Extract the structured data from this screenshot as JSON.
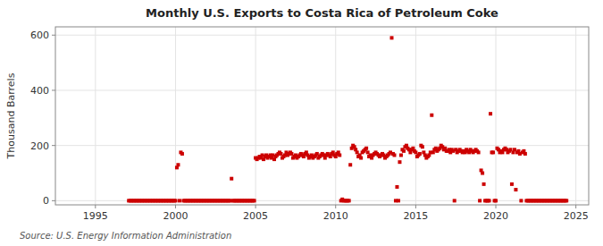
{
  "chart_data": {
    "type": "scatter",
    "title": "Monthly U.S. Exports to Costa Rica of Petroleum Coke",
    "ylabel": "Thousand Barrels",
    "annotation": "Source: U.S. Energy Information Administration",
    "color": "#cc0000",
    "marker": "square",
    "grid": true,
    "xlim": [
      1992.5,
      2025.8
    ],
    "xticks": [
      1995,
      2000,
      2005,
      2010,
      2015,
      2020,
      2025
    ],
    "ylim": [
      -15,
      630
    ],
    "yticks": [
      0,
      200,
      400,
      600
    ],
    "x": [
      1997.083,
      1997.167,
      1997.25,
      1997.333,
      1997.417,
      1997.5,
      1997.583,
      1997.667,
      1997.75,
      1997.833,
      1997.917,
      1998.0,
      1998.083,
      1998.167,
      1998.25,
      1998.333,
      1998.417,
      1998.5,
      1998.583,
      1998.667,
      1998.75,
      1998.833,
      1998.917,
      1999.0,
      1999.083,
      1999.167,
      1999.25,
      1999.333,
      1999.417,
      1999.5,
      1999.583,
      1999.667,
      1999.75,
      1999.833,
      1999.917,
      2000.0,
      2000.083,
      2000.167,
      2000.25,
      2000.333,
      2000.417,
      2000.5,
      2000.583,
      2000.667,
      2000.75,
      2000.833,
      2000.917,
      2001.0,
      2001.083,
      2001.167,
      2001.25,
      2001.333,
      2001.417,
      2001.5,
      2001.583,
      2001.667,
      2001.75,
      2001.833,
      2001.917,
      2002.0,
      2002.083,
      2002.167,
      2002.25,
      2002.333,
      2002.417,
      2002.5,
      2002.583,
      2002.667,
      2002.75,
      2002.833,
      2002.917,
      2003.0,
      2003.083,
      2003.167,
      2003.25,
      2003.333,
      2003.417,
      2003.5,
      2003.583,
      2003.667,
      2003.75,
      2003.833,
      2003.917,
      2004.0,
      2004.083,
      2004.167,
      2004.25,
      2004.333,
      2004.417,
      2004.5,
      2004.583,
      2004.667,
      2004.75,
      2004.833,
      2004.917,
      2005.0,
      2005.083,
      2005.167,
      2005.25,
      2005.333,
      2005.417,
      2005.5,
      2005.583,
      2005.667,
      2005.75,
      2005.833,
      2005.917,
      2006.0,
      2006.083,
      2006.167,
      2006.25,
      2006.333,
      2006.417,
      2006.5,
      2006.583,
      2006.667,
      2006.75,
      2006.833,
      2006.917,
      2007.0,
      2007.083,
      2007.167,
      2007.25,
      2007.333,
      2007.417,
      2007.5,
      2007.583,
      2007.667,
      2007.75,
      2007.833,
      2007.917,
      2008.0,
      2008.083,
      2008.167,
      2008.25,
      2008.333,
      2008.417,
      2008.5,
      2008.583,
      2008.667,
      2008.75,
      2008.833,
      2008.917,
      2009.0,
      2009.083,
      2009.167,
      2009.25,
      2009.333,
      2009.417,
      2009.5,
      2009.583,
      2009.667,
      2009.75,
      2009.833,
      2009.917,
      2010.0,
      2010.083,
      2010.167,
      2010.25,
      2010.333,
      2010.417,
      2010.5,
      2010.583,
      2010.667,
      2010.75,
      2010.833,
      2010.917,
      2011.0,
      2011.083,
      2011.167,
      2011.25,
      2011.333,
      2011.417,
      2011.5,
      2011.583,
      2011.667,
      2011.75,
      2011.833,
      2011.917,
      2012.0,
      2012.083,
      2012.167,
      2012.25,
      2012.333,
      2012.417,
      2012.5,
      2012.583,
      2012.667,
      2012.75,
      2012.833,
      2012.917,
      2013.0,
      2013.083,
      2013.167,
      2013.25,
      2013.333,
      2013.417,
      2013.5,
      2013.583,
      2013.667,
      2013.75,
      2013.833,
      2013.917,
      2014.0,
      2014.083,
      2014.167,
      2014.25,
      2014.333,
      2014.417,
      2014.5,
      2014.583,
      2014.667,
      2014.75,
      2014.833,
      2014.917,
      2015.0,
      2015.083,
      2015.167,
      2015.25,
      2015.333,
      2015.417,
      2015.5,
      2015.583,
      2015.667,
      2015.75,
      2015.833,
      2015.917,
      2016.0,
      2016.083,
      2016.167,
      2016.25,
      2016.333,
      2016.417,
      2016.5,
      2016.583,
      2016.667,
      2016.75,
      2016.833,
      2016.917,
      2017.0,
      2017.083,
      2017.167,
      2017.25,
      2017.333,
      2017.417,
      2017.5,
      2017.583,
      2017.667,
      2017.75,
      2017.833,
      2017.917,
      2018.0,
      2018.083,
      2018.167,
      2018.25,
      2018.333,
      2018.417,
      2018.5,
      2018.583,
      2018.667,
      2018.75,
      2018.833,
      2018.917,
      2019.0,
      2019.083,
      2019.167,
      2019.25,
      2019.333,
      2019.417,
      2019.5,
      2019.583,
      2019.667,
      2019.75,
      2019.833,
      2019.917,
      2020.0,
      2020.083,
      2020.167,
      2020.25,
      2020.333,
      2020.417,
      2020.5,
      2020.583,
      2020.667,
      2020.75,
      2020.833,
      2020.917,
      2021.0,
      2021.083,
      2021.167,
      2021.25,
      2021.333,
      2021.417,
      2021.5,
      2021.583,
      2021.667,
      2021.75,
      2021.833,
      2021.917,
      2022.0,
      2022.083,
      2022.167,
      2022.25,
      2022.333,
      2022.417,
      2022.5,
      2022.583,
      2022.667,
      2022.75,
      2022.833,
      2022.917,
      2023.0,
      2023.083,
      2023.167,
      2023.25,
      2023.333,
      2023.417,
      2023.5,
      2023.583,
      2023.667,
      2023.75,
      2023.833,
      2023.917,
      2024.0,
      2024.083,
      2024.167,
      2024.25,
      2024.333,
      2024.417
    ],
    "values": [
      0,
      0,
      0,
      0,
      0,
      0,
      0,
      0,
      0,
      0,
      0,
      0,
      0,
      0,
      0,
      0,
      0,
      0,
      0,
      0,
      0,
      0,
      0,
      0,
      0,
      0,
      0,
      0,
      0,
      0,
      0,
      0,
      0,
      0,
      0,
      0,
      120,
      130,
      0,
      175,
      170,
      0,
      0,
      0,
      0,
      0,
      0,
      0,
      0,
      0,
      0,
      0,
      0,
      0,
      0,
      0,
      0,
      0,
      0,
      0,
      0,
      0,
      0,
      0,
      0,
      0,
      0,
      0,
      0,
      0,
      0,
      0,
      0,
      0,
      0,
      0,
      0,
      80,
      0,
      0,
      0,
      0,
      0,
      0,
      0,
      0,
      0,
      0,
      0,
      0,
      0,
      0,
      0,
      0,
      0,
      155,
      150,
      155,
      160,
      155,
      165,
      150,
      160,
      165,
      155,
      160,
      165,
      155,
      165,
      150,
      160,
      165,
      170,
      175,
      170,
      155,
      160,
      165,
      175,
      165,
      170,
      175,
      170,
      155,
      160,
      165,
      155,
      160,
      165,
      170,
      165,
      160,
      170,
      175,
      165,
      155,
      160,
      165,
      155,
      160,
      165,
      170,
      155,
      160,
      165,
      170,
      165,
      155,
      165,
      170,
      165,
      160,
      170,
      175,
      165,
      160,
      170,
      175,
      165,
      0,
      5,
      0,
      0,
      0,
      0,
      0,
      130,
      190,
      200,
      195,
      185,
      175,
      160,
      165,
      155,
      175,
      180,
      185,
      190,
      175,
      160,
      165,
      155,
      165,
      170,
      175,
      170,
      165,
      160,
      165,
      170,
      165,
      155,
      160,
      165,
      170,
      175,
      590,
      170,
      165,
      0,
      50,
      0,
      140,
      165,
      185,
      180,
      195,
      200,
      190,
      185,
      175,
      185,
      190,
      180,
      175,
      160,
      165,
      170,
      200,
      195,
      175,
      165,
      155,
      160,
      165,
      175,
      310,
      175,
      185,
      190,
      180,
      185,
      190,
      200,
      195,
      185,
      190,
      180,
      180,
      185,
      175,
      185,
      180,
      0,
      185,
      175,
      180,
      185,
      180,
      175,
      180,
      175,
      185,
      180,
      175,
      185,
      180,
      175,
      180,
      185,
      180,
      175,
      0,
      110,
      100,
      60,
      0,
      0,
      0,
      0,
      315,
      175,
      175,
      0,
      0,
      190,
      185,
      175,
      180,
      175,
      185,
      190,
      185,
      175,
      180,
      185,
      60,
      175,
      185,
      40,
      175,
      180,
      170,
      0,
      175,
      180,
      170,
      0,
      0,
      0,
      0,
      0,
      0,
      0,
      0,
      0,
      0,
      0,
      0,
      0,
      0,
      0,
      0,
      0,
      0,
      0,
      0,
      0,
      0,
      0,
      0,
      0,
      0,
      0,
      0,
      0,
      0,
      0
    ]
  }
}
